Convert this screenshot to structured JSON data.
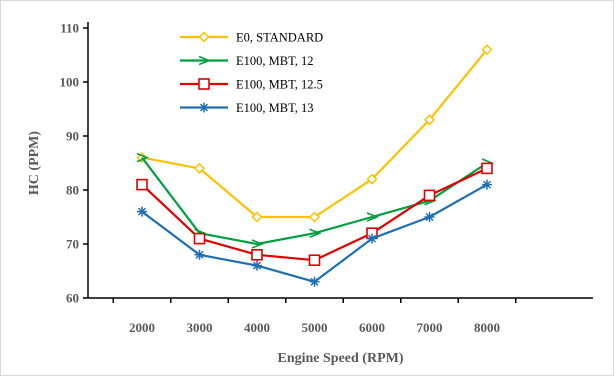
{
  "chart_data": {
    "type": "line",
    "xlabel": "Engine Speed (RPM)",
    "ylabel": "HC (PPM)",
    "x": [
      2000,
      3000,
      4000,
      5000,
      6000,
      7000,
      8000
    ],
    "x_tick_labels": [
      "2000",
      "3000",
      "4000",
      "5000",
      "6000",
      "7000",
      "8000"
    ],
    "y_ticks": [
      60,
      70,
      80,
      90,
      100,
      110
    ],
    "y_tick_labels": [
      "60",
      "70",
      "80",
      "90",
      "100",
      "110"
    ],
    "ylim": [
      60,
      110
    ],
    "grid": false,
    "legend_position": "top-center",
    "series": [
      {
        "name": "E0, STANDARD",
        "color": "#FFC000",
        "marker": "diamond",
        "values": [
          86,
          84,
          75,
          75,
          82,
          93,
          106
        ]
      },
      {
        "name": "E100, MBT, 12",
        "color": "#00A040",
        "marker": "arrow",
        "values": [
          86,
          72,
          70,
          72,
          75,
          78,
          85
        ]
      },
      {
        "name": "E100, MBT, 12.5",
        "color": "#E00000",
        "marker": "square",
        "values": [
          81,
          71,
          68,
          67,
          72,
          79,
          84
        ]
      },
      {
        "name": "E100, MBT, 13",
        "color": "#1F6FB4",
        "marker": "star",
        "values": [
          76,
          68,
          66,
          63,
          71,
          75,
          81
        ]
      }
    ]
  }
}
